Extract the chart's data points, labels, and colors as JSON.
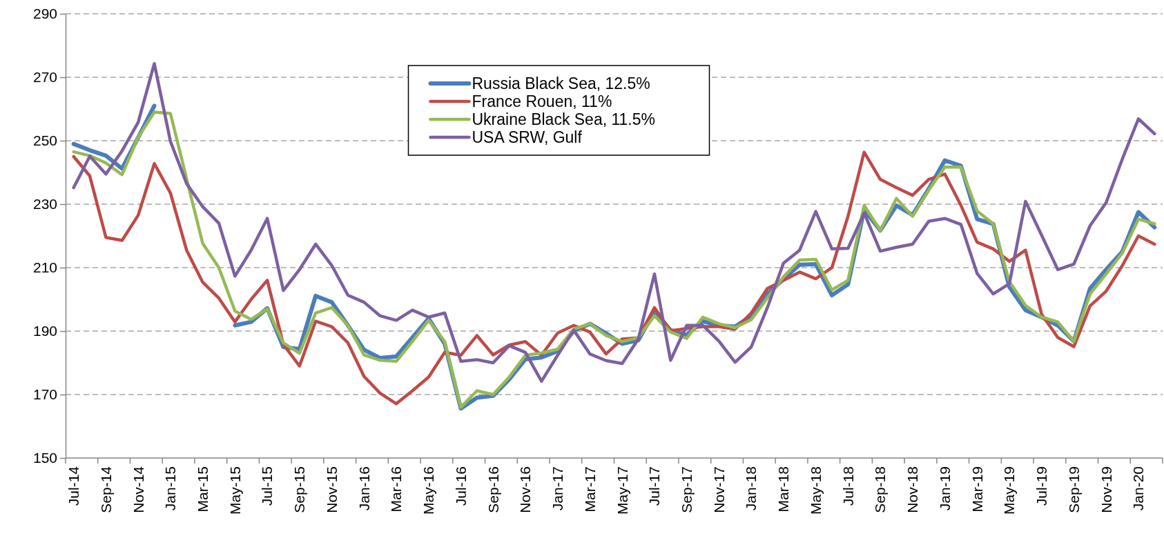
{
  "chart_data": {
    "type": "line",
    "categories": [
      "Jul-14",
      null,
      "Sep-14",
      null,
      "Nov-14",
      null,
      "Jan-15",
      null,
      "Mar-15",
      null,
      "May-15",
      null,
      "Jul-15",
      null,
      "Sep-15",
      null,
      "Nov-15",
      null,
      "Jan-16",
      null,
      "Mar-16",
      null,
      "May-16",
      null,
      "Jul-16",
      null,
      "Sep-16",
      null,
      "Nov-16",
      null,
      "Jan-17",
      null,
      "Mar-17",
      null,
      "May-17",
      null,
      "Jul-17",
      null,
      "Sep-17",
      null,
      "Nov-17",
      null,
      "Jan-18",
      null,
      "Mar-18",
      null,
      "May-18",
      null,
      "Jul-18",
      null,
      "Sep-18",
      null,
      "Nov-18",
      null,
      "Jan-19",
      null,
      "Mar-19",
      null,
      "May-19",
      null,
      "Jul-19",
      null,
      "Sep-19",
      null,
      "Nov-19",
      null,
      "Jan-20",
      null
    ],
    "series": [
      {
        "name": "Russia Black Sea, 12.5%",
        "color": "#4a7ebb",
        "values": [
          249,
          247,
          245.3,
          241.2,
          251,
          261,
          null,
          null,
          null,
          null,
          191.8,
          192.9,
          197.2,
          185,
          184.3,
          201.1,
          199.1,
          191.8,
          184.1,
          181.5,
          182,
          188,
          194,
          186,
          165.6,
          169,
          169.6,
          174.8,
          181.1,
          181.7,
          183.7,
          190.1,
          192.3,
          189.3,
          186,
          187.1,
          196.1,
          190.3,
          188.8,
          193.1,
          191.8,
          191.4,
          194.8,
          201.7,
          206.4,
          210.9,
          211.1,
          201.3,
          204.7,
          228.3,
          221.7,
          229.6,
          226.6,
          234.8,
          243.8,
          242.1,
          225.3,
          223.8,
          203.9,
          196.6,
          194.4,
          191.8,
          186.8,
          203.4,
          209.4,
          215,
          227.5,
          222.7
        ]
      },
      {
        "name": "France Rouen, 11%",
        "color": "#be4b48",
        "values": [
          245,
          238.9,
          219.5,
          218.6,
          226.5,
          242.8,
          233.5,
          215.5,
          205.4,
          200.4,
          192.9,
          200,
          206,
          185.8,
          179,
          193.1,
          191.4,
          186.3,
          175.7,
          170.4,
          167.1,
          171.2,
          175.5,
          183.3,
          182.4,
          188.6,
          182.5,
          185.6,
          186.7,
          182.4,
          189.4,
          191.8,
          189.7,
          182.8,
          187.5,
          187.9,
          197.4,
          190.1,
          190.8,
          191.4,
          191.4,
          190.6,
          195.7,
          203.4,
          206,
          208.6,
          206.5,
          210,
          226.2,
          246.4,
          237.8,
          235.2,
          232.8,
          237.8,
          239.5,
          229.6,
          218,
          215.9,
          212,
          215.5,
          195.3,
          188,
          185.1,
          197.9,
          202.6,
          210.6,
          220,
          217.4
        ]
      },
      {
        "name": "Ukraine Black Sea, 11.5%",
        "color": "#98b954",
        "values": [
          246.5,
          245.3,
          243,
          239.3,
          251.1,
          259,
          258.6,
          238,
          217.6,
          210,
          196.3,
          193.7,
          197,
          186.3,
          183,
          195.7,
          197.4,
          191.8,
          182.5,
          180.8,
          180.5,
          186.7,
          193.4,
          186.7,
          166,
          171.2,
          170,
          175.5,
          182.4,
          183.1,
          184.3,
          190.6,
          192.3,
          188.6,
          186.7,
          187.9,
          194.8,
          189.7,
          187.7,
          194.4,
          192.3,
          191.1,
          193.6,
          200.4,
          207.1,
          212.4,
          212.6,
          203,
          206,
          229.6,
          221.7,
          231.8,
          226.2,
          234.4,
          241.7,
          241.7,
          227.9,
          223.8,
          205.6,
          198.1,
          194.4,
          192.9,
          186.8,
          201.7,
          208,
          214.6,
          225.3,
          223.8
        ]
      },
      {
        "name": "USA SRW, Gulf",
        "color": "#7d60a0",
        "values": [
          235.2,
          245.1,
          239.5,
          246.8,
          255.8,
          274.3,
          249.8,
          236.5,
          229.2,
          224,
          207.3,
          215.5,
          225.5,
          202.8,
          209.4,
          217.4,
          210.7,
          201.3,
          199.1,
          194.8,
          193.4,
          196.6,
          194.4,
          195.7,
          180.5,
          181,
          180,
          185.4,
          183.3,
          174.2,
          182.4,
          190.3,
          182.8,
          180.7,
          179.8,
          187.5,
          208,
          180.8,
          191.8,
          191.8,
          186.8,
          180.2,
          185,
          197.4,
          211.4,
          215.5,
          227.7,
          215.9,
          216.1,
          227.2,
          215.2,
          216.4,
          217.4,
          224.6,
          225.5,
          223.6,
          208.2,
          201.7,
          204.9,
          230.9,
          220.2,
          209.4,
          211.1,
          223.2,
          230.5,
          244.2,
          256.9,
          252.2
        ]
      }
    ],
    "ylim": [
      150,
      290
    ],
    "yticks": [
      150,
      170,
      190,
      210,
      230,
      250,
      270,
      290
    ],
    "grid": "y",
    "legend": "top",
    "marker": "none",
    "line_style": "solid"
  }
}
